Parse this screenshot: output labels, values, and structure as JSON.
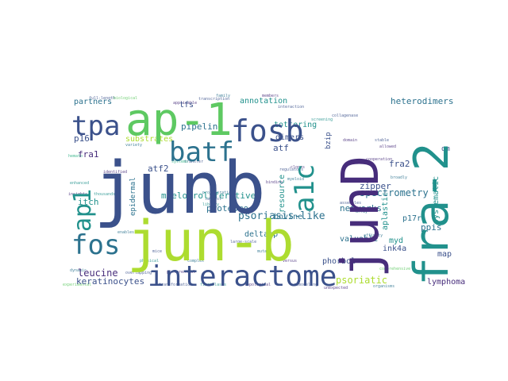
{
  "palette": {
    "dark_indigo": "#472d7b",
    "indigo": "#3b518b",
    "blue": "#2c728e",
    "teal": "#21918c",
    "green": "#28ae80",
    "lightgreen": "#5ec962",
    "lime": "#addc30",
    "yellow": "#fde725"
  },
  "words": [
    {
      "text": "junb",
      "color": "indigo"
    },
    {
      "text": "jun-b",
      "color": "lime"
    },
    {
      "text": "junD",
      "color": "dark_indigo"
    },
    {
      "text": "fra-2",
      "color": "teal"
    },
    {
      "text": "ap-1",
      "color": "lightgreen"
    },
    {
      "text": "interactome",
      "color": "indigo"
    },
    {
      "text": "fosb",
      "color": "indigo"
    },
    {
      "text": "batf",
      "color": "blue"
    },
    {
      "text": "tpa",
      "color": "indigo"
    },
    {
      "text": "fos",
      "color": "blue"
    },
    {
      "text": "ap1",
      "color": "teal"
    },
    {
      "text": "a1c",
      "color": "teal"
    },
    {
      "text": "psoriasis-like",
      "color": "blue"
    },
    {
      "text": "myeloproliferative",
      "color": "teal"
    },
    {
      "text": "proteome",
      "color": "blue"
    },
    {
      "text": "psoriatic",
      "color": "lime"
    },
    {
      "text": "spectrometry",
      "color": "blue"
    },
    {
      "text": "keratinocytes",
      "color": "indigo"
    },
    {
      "text": "leucine",
      "color": "dark_indigo"
    },
    {
      "text": "networks",
      "color": "blue"
    },
    {
      "text": "heterodimers",
      "color": "blue"
    },
    {
      "text": "pipeline",
      "color": "blue"
    },
    {
      "text": "annotation",
      "color": "teal"
    },
    {
      "text": "substrates",
      "color": "lime"
    },
    {
      "text": "tottering",
      "color": "teal"
    },
    {
      "text": "dimers",
      "color": "indigo"
    },
    {
      "text": "partners",
      "color": "blue"
    },
    {
      "text": "epidermal",
      "color": "blue"
    },
    {
      "text": "deltaep",
      "color": "blue"
    },
    {
      "text": "bovine",
      "color": "blue"
    },
    {
      "text": "resource",
      "color": "teal"
    },
    {
      "text": "valuable",
      "color": "blue"
    },
    {
      "text": "phorbol",
      "color": "indigo"
    },
    {
      "text": "lymphoma",
      "color": "dark_indigo"
    },
    {
      "text": "aplastic",
      "color": "teal"
    },
    {
      "text": "systematic",
      "color": "teal"
    },
    {
      "text": "ink4a",
      "color": "indigo"
    },
    {
      "text": "zipper",
      "color": "indigo"
    },
    {
      "text": "ppis",
      "color": "blue"
    },
    {
      "text": "p17r",
      "color": "blue"
    },
    {
      "text": "fra2",
      "color": "indigo"
    },
    {
      "text": "fra1",
      "color": "dark_indigo"
    },
    {
      "text": "atf2",
      "color": "indigo"
    },
    {
      "text": "atf",
      "color": "indigo"
    },
    {
      "text": "itch",
      "color": "teal"
    },
    {
      "text": "myd",
      "color": "teal"
    },
    {
      "text": "map",
      "color": "indigo"
    },
    {
      "text": "tfs",
      "color": "indigo"
    },
    {
      "text": "p16",
      "color": "indigo"
    },
    {
      "text": "bzip",
      "color": "indigo"
    },
    {
      "text": "qm",
      "color": "indigo"
    }
  ],
  "small_words": [
    "full-length",
    "biological",
    "thousands",
    "identified",
    "variety",
    "transfer",
    "applicable",
    "systems",
    "proliferation",
    "largest",
    "library",
    "binding",
    "myeloid",
    "regulators",
    "clones",
    "affinity",
    "collagenase",
    "cooperation",
    "broadly",
    "comprehensive",
    "transformation",
    "fibroblasts",
    "topological",
    "remodeling",
    "dynamic",
    "experimental",
    "assembles",
    "array",
    "domain",
    "hemato",
    "stable",
    "allowed",
    "complex",
    "overlapping",
    "preferential",
    "physical",
    "mice",
    "mutant",
    "versus",
    "large-scale",
    "enables",
    "insights",
    "enhanced",
    "transcription",
    "family",
    "members",
    "interaction",
    "screening",
    "organisms",
    "unexpected"
  ]
}
